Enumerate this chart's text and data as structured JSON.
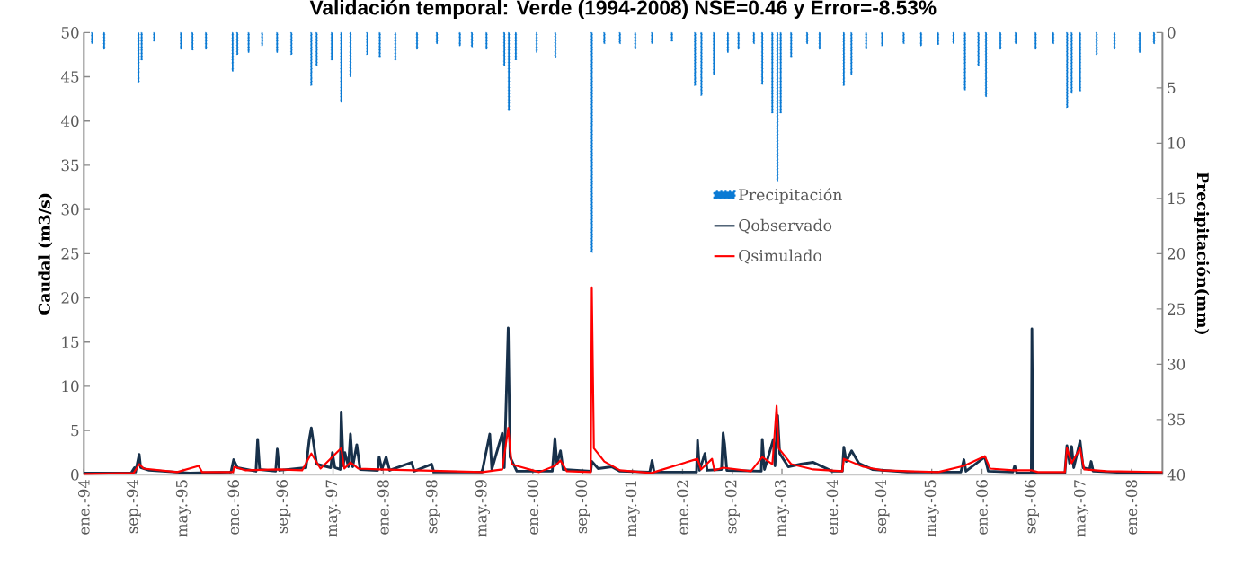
{
  "chart_data": {
    "type": "line",
    "title": "Validación temporal: Verde (1994-2008) NSE=0.46 y Error=-8.53%",
    "ylabel": "Caudal (m3/s)",
    "y2label": "Precipitación(mm)",
    "xlim": [
      "1994-01-01",
      "2008-05-31"
    ],
    "xticks": [
      {
        "value": "1994-01-01",
        "label": "ene.-94"
      },
      {
        "value": "1994-09-01",
        "label": "sep.-94"
      },
      {
        "value": "1995-05-01",
        "label": "may.-95"
      },
      {
        "value": "1996-01-01",
        "label": "ene.-96"
      },
      {
        "value": "1996-09-01",
        "label": "sep.-96"
      },
      {
        "value": "1997-05-01",
        "label": "may.-97"
      },
      {
        "value": "1998-01-01",
        "label": "ene.-98"
      },
      {
        "value": "1998-09-01",
        "label": "sep.-98"
      },
      {
        "value": "1999-05-01",
        "label": "may.-99"
      },
      {
        "value": "2000-01-01",
        "label": "ene.-00"
      },
      {
        "value": "2000-09-01",
        "label": "sep.-00"
      },
      {
        "value": "2001-05-01",
        "label": "may.-01"
      },
      {
        "value": "2002-01-01",
        "label": "ene.-02"
      },
      {
        "value": "2002-09-01",
        "label": "sep.-02"
      },
      {
        "value": "2003-05-01",
        "label": "may.-03"
      },
      {
        "value": "2004-01-01",
        "label": "ene.-04"
      },
      {
        "value": "2004-09-01",
        "label": "sep.-04"
      },
      {
        "value": "2005-05-01",
        "label": "may.-05"
      },
      {
        "value": "2006-01-01",
        "label": "ene.-06"
      },
      {
        "value": "2006-09-01",
        "label": "sep.-06"
      },
      {
        "value": "2007-05-01",
        "label": "may.-07"
      },
      {
        "value": "2008-01-01",
        "label": "ene.-08"
      }
    ],
    "ylim": [
      0,
      50
    ],
    "yticks": [
      0,
      5,
      10,
      15,
      20,
      25,
      30,
      35,
      40,
      45,
      50
    ],
    "y2lim": [
      40,
      0
    ],
    "y2ticks": [
      0,
      5,
      10,
      15,
      20,
      25,
      30,
      35,
      40
    ],
    "legend": "center",
    "marker": "none",
    "line_style": "solid",
    "series": [
      {
        "name": "Precipitación",
        "type": "bar",
        "axis": "y2",
        "color": "#0a7ad4",
        "x": [
          "1994-02-10",
          "1994-04-10",
          "1994-09-25",
          "1994-10-10",
          "1994-12-10",
          "1995-04-20",
          "1995-06-15",
          "1995-08-20",
          "1995-12-28",
          "1996-01-20",
          "1996-03-15",
          "1996-05-20",
          "1996-08-01",
          "1996-10-10",
          "1997-01-15",
          "1997-02-10",
          "1997-04-25",
          "1997-06-10",
          "1997-07-25",
          "1997-10-15",
          "1997-12-15",
          "1998-03-01",
          "1998-06-15",
          "1998-09-20",
          "1999-01-10",
          "1999-03-10",
          "1999-05-20",
          "1999-08-15",
          "1999-09-06",
          "1999-10-10",
          "2000-01-20",
          "2000-04-20",
          "2000-10-15",
          "2000-12-15",
          "2001-03-01",
          "2001-05-15",
          "2001-08-05",
          "2001-11-10",
          "2002-03-03",
          "2002-04-03",
          "2002-06-03",
          "2002-08-10",
          "2002-10-01",
          "2002-12-15",
          "2003-01-25",
          "2003-03-15",
          "2003-04-09",
          "2003-04-25",
          "2003-06-15",
          "2003-09-01",
          "2003-11-01",
          "2004-02-27",
          "2004-04-04",
          "2004-06-15",
          "2004-09-01",
          "2004-12-15",
          "2005-03-10",
          "2005-06-01",
          "2005-08-15",
          "2005-10-10",
          "2005-12-15",
          "2006-01-21",
          "2006-04-01",
          "2006-06-15",
          "2006-09-20",
          "2006-12-15",
          "2007-02-21",
          "2007-03-15",
          "2007-04-25",
          "2007-07-15",
          "2007-10-10",
          "2008-02-10",
          "2008-04-20"
        ],
        "values": [
          1.0,
          1.5,
          4.5,
          2.5,
          0.8,
          1.5,
          1.6,
          1.5,
          3.5,
          2.0,
          1.8,
          1.2,
          1.8,
          2.0,
          4.8,
          3.0,
          2.5,
          6.3,
          4.0,
          2.0,
          2.2,
          2.5,
          1.5,
          1.0,
          1.2,
          1.3,
          1.5,
          3.0,
          7.0,
          2.5,
          1.8,
          2.3,
          19.9,
          1.0,
          1.0,
          1.5,
          1.0,
          0.8,
          4.8,
          5.7,
          3.8,
          1.8,
          1.5,
          1.0,
          4.7,
          7.3,
          13.4,
          7.3,
          2.2,
          1.0,
          1.5,
          4.8,
          3.8,
          1.5,
          1.2,
          1.0,
          1.2,
          1.1,
          1.0,
          5.2,
          3.0,
          5.8,
          1.5,
          1.0,
          1.5,
          1.0,
          6.8,
          5.5,
          5.3,
          2.0,
          1.5,
          1.8,
          1.0
        ]
      },
      {
        "name": "Qobservado",
        "color": "#17304a",
        "x": [
          "1994-01-01",
          "1994-08-20",
          "1994-09-05",
          "1994-09-10",
          "1994-09-28",
          "1994-10-05",
          "1994-11-15",
          "1995-06-01",
          "1995-12-20",
          "1996-01-02",
          "1996-01-20",
          "1996-04-20",
          "1996-04-28",
          "1996-05-08",
          "1996-07-25",
          "1996-08-02",
          "1996-08-12",
          "1996-12-20",
          "1997-01-05",
          "1997-01-15",
          "1997-02-10",
          "1997-04-20",
          "1997-04-28",
          "1997-05-10",
          "1997-06-05",
          "1997-06-10",
          "1997-06-20",
          "1997-06-28",
          "1997-07-15",
          "1997-07-25",
          "1997-08-05",
          "1997-08-25",
          "1997-09-10",
          "1997-12-05",
          "1997-12-12",
          "1997-12-25",
          "1998-01-15",
          "1998-02-01",
          "1998-05-20",
          "1998-06-01",
          "1998-08-25",
          "1998-09-05",
          "1999-04-25",
          "1999-05-01",
          "1999-06-05",
          "1999-06-15",
          "1999-08-05",
          "1999-08-15",
          "1999-09-03",
          "1999-09-12",
          "1999-10-15",
          "2000-04-05",
          "2000-04-18",
          "2000-04-28",
          "2000-05-15",
          "2000-05-28",
          "2000-10-10",
          "2000-10-15",
          "2000-11-15",
          "2001-01-20",
          "2001-03-01",
          "2001-07-25",
          "2001-08-05",
          "2001-08-15",
          "2002-03-10",
          "2002-03-15",
          "2002-03-25",
          "2002-04-20",
          "2002-05-01",
          "2002-07-10",
          "2002-07-18",
          "2002-07-25",
          "2002-08-05",
          "2003-01-20",
          "2003-01-25",
          "2003-02-05",
          "2003-03-20",
          "2003-03-28",
          "2003-04-10",
          "2003-04-20",
          "2003-06-01",
          "2003-08-01",
          "2003-10-01",
          "2004-01-01",
          "2004-02-20",
          "2004-02-27",
          "2004-03-10",
          "2004-04-05",
          "2004-05-10",
          "2004-07-15",
          "2005-01-01",
          "2005-09-20",
          "2005-10-05",
          "2005-10-15",
          "2006-01-15",
          "2006-02-01",
          "2006-06-01",
          "2006-06-10",
          "2006-06-20",
          "2006-08-30",
          "2006-09-02",
          "2006-09-08",
          "2007-02-10",
          "2007-02-20",
          "2007-03-05",
          "2007-03-15",
          "2007-03-25",
          "2007-04-25",
          "2007-05-10",
          "2007-06-10",
          "2007-06-18",
          "2007-06-28",
          "2008-01-01",
          "2008-05-31"
        ],
        "values": [
          0.2,
          0.2,
          0.8,
          0.3,
          2.3,
          0.8,
          0.5,
          0.2,
          0.3,
          1.7,
          0.8,
          0.4,
          4.0,
          0.6,
          0.4,
          2.9,
          0.5,
          0.8,
          4.0,
          5.3,
          1.2,
          0.8,
          2.5,
          0.8,
          0.6,
          7.1,
          1.0,
          2.5,
          0.9,
          4.6,
          0.9,
          3.4,
          0.6,
          0.5,
          2.0,
          0.6,
          2.0,
          0.5,
          1.4,
          0.4,
          1.2,
          0.3,
          0.3,
          0.6,
          4.6,
          0.6,
          4.7,
          0.8,
          16.6,
          2.0,
          0.4,
          0.4,
          4.1,
          1.2,
          2.7,
          0.6,
          0.4,
          1.5,
          0.7,
          0.9,
          0.4,
          0.3,
          1.6,
          0.3,
          0.3,
          3.9,
          0.5,
          2.4,
          0.5,
          0.6,
          4.7,
          3.5,
          0.5,
          0.4,
          4.0,
          0.6,
          4.0,
          1.0,
          6.7,
          2.4,
          0.9,
          1.2,
          1.4,
          0.4,
          0.4,
          3.1,
          1.5,
          2.7,
          1.3,
          0.6,
          0.3,
          0.3,
          1.7,
          0.4,
          2.0,
          0.4,
          0.3,
          1.0,
          0.2,
          0.2,
          16.5,
          0.2,
          0.2,
          3.3,
          1.3,
          3.2,
          0.8,
          3.8,
          0.8,
          0.6,
          1.5,
          0.4,
          0.2,
          0.2
        ]
      },
      {
        "name": "Qsimulado",
        "color": "#ff0000",
        "x": [
          "1994-01-01",
          "1994-09-01",
          "1994-09-28",
          "1994-10-20",
          "1995-04-01",
          "1995-07-15",
          "1995-08-01",
          "1995-12-30",
          "1996-01-05",
          "1996-03-01",
          "1996-08-05",
          "1996-12-01",
          "1997-01-15",
          "1997-03-01",
          "1997-06-10",
          "1997-06-25",
          "1997-07-25",
          "1997-09-01",
          "1997-12-12",
          "1998-06-01",
          "1999-05-01",
          "1999-08-05",
          "1999-09-03",
          "1999-09-20",
          "1999-10-15",
          "2000-02-01",
          "2000-04-18",
          "2000-05-15",
          "2000-06-15",
          "2000-10-10",
          "2000-10-15",
          "2000-10-25",
          "2000-12-15",
          "2001-03-01",
          "2001-08-01",
          "2002-03-15",
          "2002-04-01",
          "2002-05-25",
          "2002-06-05",
          "2002-07-18",
          "2002-12-01",
          "2003-01-25",
          "2003-03-15",
          "2003-03-20",
          "2003-04-05",
          "2003-04-15",
          "2003-06-15",
          "2003-10-01",
          "2004-02-20",
          "2004-02-27",
          "2004-06-01",
          "2004-09-01",
          "2005-06-01",
          "2005-10-05",
          "2006-01-15",
          "2006-02-10",
          "2006-06-01",
          "2006-09-02",
          "2006-10-01",
          "2007-02-10",
          "2007-02-20",
          "2007-03-15",
          "2007-04-25",
          "2007-05-15",
          "2007-09-01",
          "2008-05-31"
        ],
        "values": [
          0.1,
          0.2,
          1.2,
          0.7,
          0.3,
          1.0,
          0.3,
          0.3,
          0.9,
          0.5,
          0.6,
          0.5,
          2.4,
          0.7,
          3.0,
          0.7,
          1.4,
          0.7,
          0.6,
          0.5,
          0.3,
          0.6,
          5.3,
          1.2,
          1.0,
          0.3,
          1.0,
          1.6,
          0.4,
          0.3,
          21.2,
          3.0,
          1.5,
          0.5,
          0.2,
          1.8,
          0.6,
          1.8,
          0.5,
          0.8,
          0.4,
          2.0,
          1.2,
          2.6,
          7.8,
          3.0,
          1.2,
          0.6,
          0.4,
          1.8,
          0.9,
          0.5,
          0.3,
          1.0,
          2.1,
          0.7,
          0.5,
          0.5,
          0.3,
          0.3,
          3.0,
          1.3,
          3.0,
          0.6,
          0.4,
          0.3
        ]
      }
    ]
  }
}
